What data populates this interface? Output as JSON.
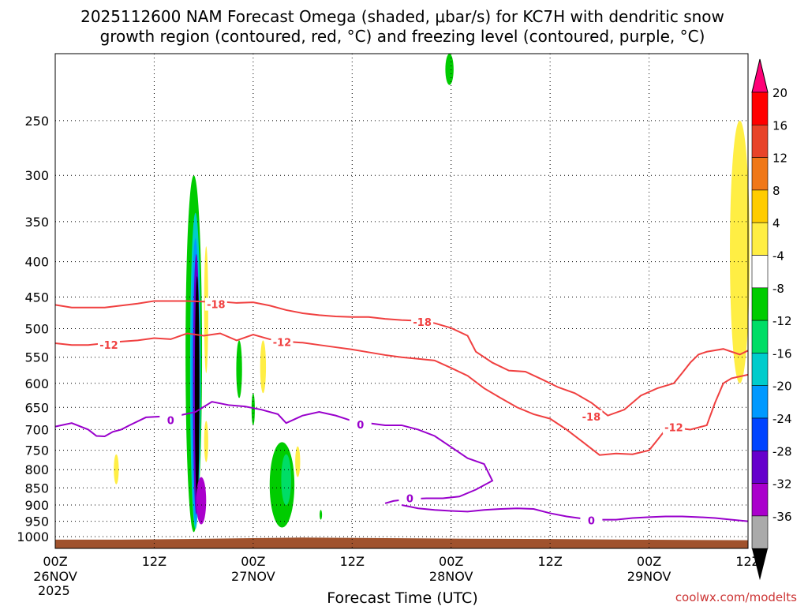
{
  "chart_data": {
    "type": "contour",
    "title_line1": "2025112600 NAM Forecast Omega (shaded, μbar/s) for KC7H with dendritic snow",
    "title_line2": "growth region (contoured, red, °C) and freezing level (contoured, purple, °C)",
    "xlabel": "Forecast Time (UTC)",
    "credit": "coolwx.com/modelts",
    "year_label": "2025",
    "x_ticks": [
      {
        "h": 0,
        "label": "00Z",
        "sub": "26NOV"
      },
      {
        "h": 12,
        "label": "12Z",
        "sub": ""
      },
      {
        "h": 24,
        "label": "00Z",
        "sub": "27NOV"
      },
      {
        "h": 36,
        "label": "12Z",
        "sub": ""
      },
      {
        "h": 48,
        "label": "00Z",
        "sub": "28NOV"
      },
      {
        "h": 60,
        "label": "12Z",
        "sub": ""
      },
      {
        "h": 72,
        "label": "00Z",
        "sub": "29NOV"
      },
      {
        "h": 84,
        "label": "12Z",
        "sub": ""
      }
    ],
    "xlim_hours": [
      0,
      84
    ],
    "y_ticks": [
      250,
      300,
      350,
      400,
      450,
      500,
      550,
      600,
      650,
      700,
      750,
      800,
      850,
      900,
      950,
      1000
    ],
    "ylim_hpa": [
      200,
      1040
    ],
    "y_scale": "log-pressure",
    "grid": true,
    "colorbar": {
      "labels": [
        "20",
        "16",
        "12",
        "8",
        "4",
        "-4",
        "-8",
        "-12",
        "-16",
        "-20",
        "-24",
        "-28",
        "-32",
        "-36"
      ],
      "colors": [
        "#ff0000",
        "#e8442a",
        "#f07818",
        "#ffcc00",
        "#ffee44",
        "#ffffff",
        "#00cc00",
        "#00dd66",
        "#00cccc",
        "#0099ff",
        "#0044ff",
        "#6600cc",
        "#aa00cc",
        "#aaaaaa"
      ],
      "top_arrow_color": "#ff0077",
      "bottom_arrow_color": "#000000"
    },
    "series": [
      {
        "name": "-18",
        "color": "#f04040",
        "points": [
          [
            0,
            462
          ],
          [
            2,
            466
          ],
          [
            4,
            466
          ],
          [
            6,
            466
          ],
          [
            8,
            463
          ],
          [
            10,
            460
          ],
          [
            12,
            456
          ],
          [
            14,
            456
          ],
          [
            16,
            456
          ],
          [
            18,
            457
          ],
          [
            20,
            457
          ],
          [
            22,
            459
          ],
          [
            24,
            458
          ],
          [
            26,
            463
          ],
          [
            28,
            470
          ],
          [
            30,
            475
          ],
          [
            32,
            478
          ],
          [
            34,
            480
          ],
          [
            36,
            481
          ],
          [
            38,
            481
          ],
          [
            40,
            484
          ],
          [
            42,
            486
          ],
          [
            44,
            487
          ],
          [
            46,
            491
          ],
          [
            48,
            499
          ],
          [
            50,
            512
          ],
          [
            51,
            540
          ],
          [
            53,
            560
          ],
          [
            55,
            575
          ],
          [
            57,
            577
          ],
          [
            59,
            592
          ],
          [
            61,
            608
          ],
          [
            63,
            620
          ],
          [
            65,
            640
          ],
          [
            67,
            668
          ],
          [
            69,
            655
          ],
          [
            71,
            625
          ],
          [
            73,
            610
          ],
          [
            75,
            600
          ],
          [
            76,
            580
          ],
          [
            77,
            560
          ],
          [
            78,
            545
          ],
          [
            79,
            540
          ],
          [
            81,
            535
          ],
          [
            82,
            540
          ],
          [
            83,
            545
          ],
          [
            84,
            538
          ]
        ],
        "label_at": [
          [
            19.5,
            461
          ],
          [
            44.5,
            489
          ],
          [
            65,
            670
          ]
        ]
      },
      {
        "name": "-12",
        "color": "#f04040",
        "points": [
          [
            0,
            525
          ],
          [
            2,
            528
          ],
          [
            4,
            528
          ],
          [
            6,
            525
          ],
          [
            8,
            522
          ],
          [
            10,
            520
          ],
          [
            12,
            516
          ],
          [
            14,
            518
          ],
          [
            16,
            508
          ],
          [
            18,
            512
          ],
          [
            20,
            508
          ],
          [
            22,
            520
          ],
          [
            24,
            510
          ],
          [
            26,
            518
          ],
          [
            28,
            522
          ],
          [
            30,
            524
          ],
          [
            32,
            528
          ],
          [
            34,
            532
          ],
          [
            36,
            536
          ],
          [
            38,
            541
          ],
          [
            40,
            546
          ],
          [
            42,
            550
          ],
          [
            44,
            553
          ],
          [
            46,
            556
          ],
          [
            48,
            570
          ],
          [
            50,
            585
          ],
          [
            52,
            610
          ],
          [
            54,
            630
          ],
          [
            56,
            650
          ],
          [
            58,
            665
          ],
          [
            60,
            675
          ],
          [
            62,
            700
          ],
          [
            64,
            730
          ],
          [
            66,
            762
          ],
          [
            68,
            758
          ],
          [
            70,
            760
          ],
          [
            72,
            750
          ],
          [
            73,
            725
          ],
          [
            74,
            700
          ],
          [
            75,
            695
          ],
          [
            77,
            700
          ],
          [
            79,
            690
          ],
          [
            80,
            640
          ],
          [
            81,
            600
          ],
          [
            82,
            590
          ],
          [
            84,
            583
          ]
        ],
        "label_at": [
          [
            6.5,
            528
          ],
          [
            27.5,
            523
          ],
          [
            75,
            695
          ]
        ]
      },
      {
        "name": "0",
        "color": "#9900cc",
        "points": [
          [
            0,
            693
          ],
          [
            2,
            685
          ],
          [
            4,
            700
          ],
          [
            5,
            715
          ],
          [
            6,
            716
          ],
          [
            7,
            705
          ],
          [
            8,
            700
          ],
          [
            9,
            690
          ],
          [
            11,
            672
          ],
          [
            13,
            670
          ],
          [
            15,
            668
          ],
          [
            17,
            660
          ],
          [
            19,
            638
          ],
          [
            21,
            645
          ],
          [
            23,
            648
          ],
          [
            25,
            655
          ],
          [
            27,
            665
          ],
          [
            28,
            685
          ],
          [
            30,
            668
          ],
          [
            32,
            660
          ],
          [
            34,
            668
          ],
          [
            36,
            680
          ],
          [
            38,
            685
          ],
          [
            40,
            690
          ],
          [
            42,
            690
          ],
          [
            44,
            700
          ],
          [
            46,
            715
          ],
          [
            48,
            742
          ],
          [
            50,
            770
          ],
          [
            52,
            785
          ],
          [
            53,
            830
          ],
          [
            51,
            855
          ],
          [
            49,
            875
          ],
          [
            47,
            880
          ],
          [
            45,
            880
          ],
          [
            43,
            882
          ],
          [
            41,
            888
          ],
          [
            40,
            895
          ]
        ],
        "label_at": [
          [
            14,
            678
          ],
          [
            37,
            688
          ],
          [
            43,
            880
          ]
        ]
      },
      {
        "name": "0b",
        "color": "#9900cc",
        "points": [
          [
            42,
            900
          ],
          [
            44,
            910
          ],
          [
            46,
            915
          ],
          [
            48,
            918
          ],
          [
            50,
            920
          ],
          [
            52,
            915
          ],
          [
            54,
            912
          ],
          [
            56,
            910
          ],
          [
            58,
            912
          ],
          [
            60,
            925
          ],
          [
            62,
            935
          ],
          [
            64,
            942
          ],
          [
            66,
            945
          ],
          [
            68,
            945
          ],
          [
            70,
            940
          ],
          [
            72,
            937
          ],
          [
            74,
            935
          ],
          [
            76,
            935
          ],
          [
            78,
            937
          ],
          [
            80,
            940
          ],
          [
            82,
            945
          ],
          [
            84,
            950
          ]
        ],
        "label_at": [
          [
            65,
            947
          ]
        ]
      }
    ],
    "omega_regions": [
      {
        "t": 16.8,
        "w": 2.0,
        "p_top": 300,
        "p_bot": 985,
        "color": "#00cc00"
      },
      {
        "t": 17.0,
        "w": 1.3,
        "p_top": 340,
        "p_bot": 975,
        "color": "#00cccc"
      },
      {
        "t": 17.0,
        "w": 1.0,
        "p_top": 370,
        "p_bot": 960,
        "color": "#0099ff"
      },
      {
        "t": 17.1,
        "w": 0.8,
        "p_top": 390,
        "p_bot": 930,
        "color": "#6600cc"
      },
      {
        "t": 17.2,
        "w": 0.55,
        "p_top": 420,
        "p_bot": 890,
        "color": "#000000"
      },
      {
        "t": 18.3,
        "w": 0.5,
        "p_top": 380,
        "p_bot": 580,
        "color": "#ffee44"
      },
      {
        "t": 18.3,
        "w": 0.5,
        "p_top": 680,
        "p_bot": 780,
        "color": "#ffee44"
      },
      {
        "t": 17.7,
        "w": 1.2,
        "p_top": 820,
        "p_bot": 960,
        "color": "#aa00cc"
      },
      {
        "t": 22.3,
        "w": 0.7,
        "p_top": 520,
        "p_bot": 630,
        "color": "#00cc00"
      },
      {
        "t": 25.2,
        "w": 0.7,
        "p_top": 520,
        "p_bot": 620,
        "color": "#ffee44"
      },
      {
        "t": 24.0,
        "w": 0.4,
        "p_top": 620,
        "p_bot": 690,
        "color": "#00cc00"
      },
      {
        "t": 27.5,
        "w": 3.0,
        "p_top": 730,
        "p_bot": 970,
        "color": "#00cc00"
      },
      {
        "t": 28.0,
        "w": 1.2,
        "p_top": 760,
        "p_bot": 900,
        "color": "#00dd66"
      },
      {
        "t": 29.4,
        "w": 0.6,
        "p_top": 740,
        "p_bot": 820,
        "color": "#ffee44"
      },
      {
        "t": 7.4,
        "w": 0.6,
        "p_top": 760,
        "p_bot": 840,
        "color": "#ffee44"
      },
      {
        "t": 32.2,
        "w": 0.3,
        "p_top": 915,
        "p_bot": 945,
        "color": "#00cc00"
      },
      {
        "t": 47.8,
        "w": 1.0,
        "p_top": 200,
        "p_bot": 222,
        "color": "#00cc00"
      },
      {
        "t": 83.0,
        "w": 2.4,
        "p_top": 250,
        "p_bot": 600,
        "color": "#ffee44"
      }
    ],
    "terrain": {
      "color": "#a0522d",
      "points": [
        [
          0,
          1010
        ],
        [
          8,
          1010
        ],
        [
          16,
          1008
        ],
        [
          24,
          1005
        ],
        [
          30,
          1003
        ],
        [
          40,
          1005
        ],
        [
          50,
          1007
        ],
        [
          60,
          1008
        ],
        [
          70,
          1010
        ],
        [
          84,
          1012
        ]
      ]
    }
  }
}
